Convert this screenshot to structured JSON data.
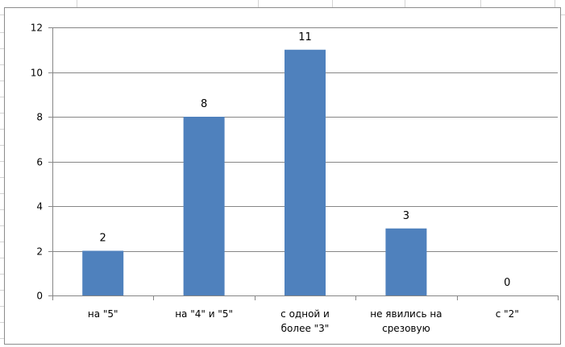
{
  "chart_data": {
    "type": "bar",
    "categories": [
      [
        "на \"5\""
      ],
      [
        "на \"4\" и \"5\""
      ],
      [
        "с одной и",
        "более \"3\""
      ],
      [
        "не явились на",
        "срезовую"
      ],
      [
        "с \"2\""
      ]
    ],
    "values": [
      2,
      8,
      11,
      3,
      0
    ],
    "data_labels": [
      "2",
      "8",
      "11",
      "3",
      "0"
    ],
    "y_ticks": [
      "0",
      "2",
      "4",
      "6",
      "8",
      "10",
      "12"
    ],
    "ylim": [
      0,
      12
    ],
    "grid": true,
    "legend": false,
    "title": "",
    "xlabel": "",
    "ylabel": "",
    "bar_color": "#4f81bd",
    "gridline_color": "#868686"
  }
}
